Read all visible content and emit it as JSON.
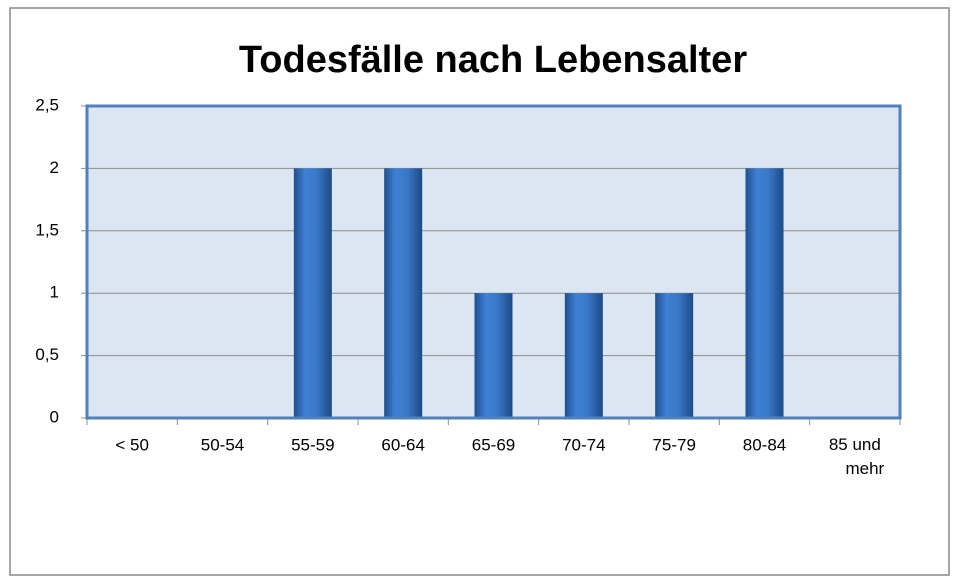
{
  "chart_data": {
    "type": "bar",
    "title": "Todesfälle nach Lebensalter",
    "categories": [
      "< 50",
      "50-54",
      "55-59",
      "60-64",
      "65-69",
      "70-74",
      "75-79",
      "80-84",
      "85 und mehr"
    ],
    "values": [
      0,
      0,
      2,
      2,
      1,
      1,
      1,
      2,
      0
    ],
    "color": "#3c7bd0",
    "ylim": [
      0,
      2.5
    ],
    "yticks": [
      0,
      {
        "value": 0.5,
        "label": "0,5"
      },
      1,
      {
        "value": 1.5,
        "label": "1,5"
      },
      2,
      {
        "value": 2.5,
        "label": "2,5"
      }
    ],
    "grid": true
  }
}
